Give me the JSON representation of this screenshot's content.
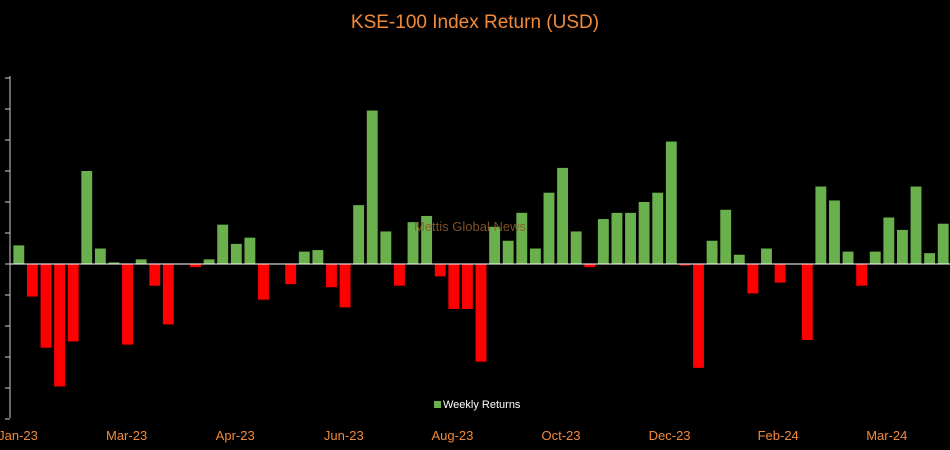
{
  "chart_data": {
    "type": "bar",
    "title": "KSE-100 Index Return (USD)",
    "watermark": "Mettis Global News",
    "xlabel": "",
    "ylabel": "",
    "x_tick_labels": [
      "Jan-23",
      "Mar-23",
      "Apr-23",
      "Jun-23",
      "Aug-23",
      "Oct-23",
      "Dec-23",
      "Feb-24",
      "Mar-24"
    ],
    "legend": [
      {
        "name": "Weekly Returns",
        "color": "#6ab04c"
      }
    ],
    "legend_position": "bottom-center",
    "ylim": [
      -5,
      6
    ],
    "grid": false,
    "positive_color": "#6ab04c",
    "negative_color": "#ff0000",
    "values": [
      0.6,
      -1.05,
      -2.7,
      -3.95,
      -2.5,
      3.0,
      0.5,
      0.05,
      -2.6,
      0.15,
      -0.7,
      -1.95,
      0,
      -0.1,
      0.15,
      1.27,
      0.65,
      0.85,
      -1.15,
      0,
      -0.65,
      0.4,
      0.45,
      -0.75,
      -1.4,
      1.9,
      4.95,
      1.05,
      -0.7,
      1.35,
      1.55,
      -0.4,
      -1.45,
      -1.45,
      -3.15,
      1.2,
      0.75,
      1.65,
      0.5,
      2.3,
      3.1,
      1.05,
      -0.1,
      1.45,
      1.65,
      1.65,
      2.0,
      2.3,
      3.95,
      -0.05,
      -3.35,
      0.75,
      1.75,
      0.3,
      -0.95,
      0.5,
      -0.6,
      0,
      -2.45,
      2.5,
      2.05,
      0.4,
      -0.7,
      0.4,
      1.5,
      1.1,
      2.5,
      0.35,
      1.3
    ]
  }
}
